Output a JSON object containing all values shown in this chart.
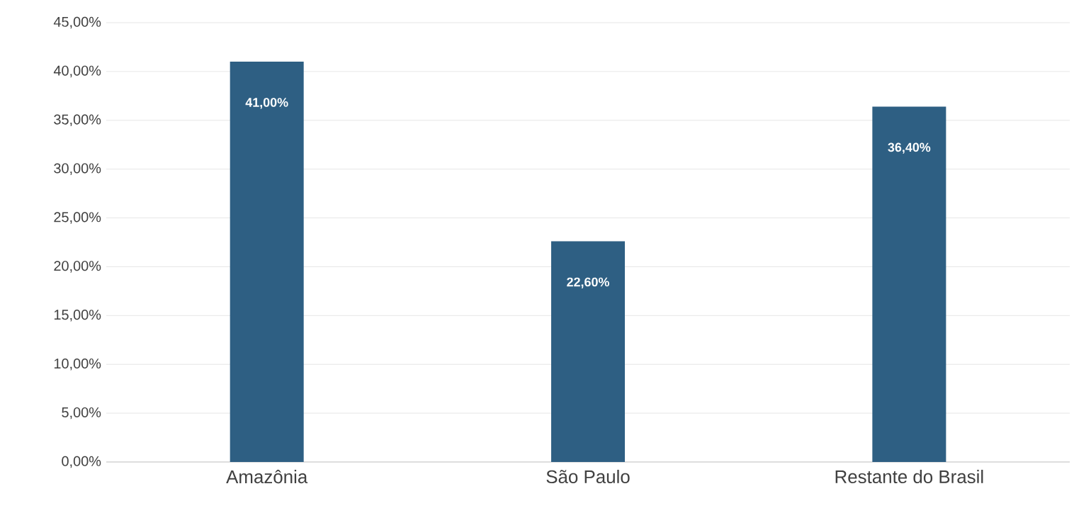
{
  "chart_data": {
    "type": "bar",
    "categories": [
      "Amazônia",
      "São Paulo",
      "Restante do Brasil"
    ],
    "values": [
      41,
      22.6,
      36.4
    ],
    "value_labels": [
      "41,00%",
      "22,60%",
      "36,40%"
    ],
    "color": "#2e5f83",
    "ylim": [
      0,
      45
    ],
    "yticks": [
      {
        "value": 0,
        "label": "0,00%"
      },
      {
        "value": 5,
        "label": "5,00%"
      },
      {
        "value": 10,
        "label": "10,00%"
      },
      {
        "value": 15,
        "label": "15,00%"
      },
      {
        "value": 20,
        "label": "20,00%"
      },
      {
        "value": 25,
        "label": "25,00%"
      },
      {
        "value": 30,
        "label": "30,00%"
      },
      {
        "value": 35,
        "label": "35,00%"
      },
      {
        "value": 40,
        "label": "40,00%"
      },
      {
        "value": 45,
        "label": "45,00%"
      }
    ],
    "grid": "y"
  }
}
